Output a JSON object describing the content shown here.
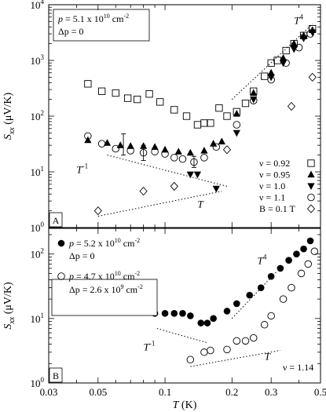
{
  "chart_data": [
    {
      "panel": "A",
      "type": "scatter",
      "log_x": true,
      "log_y": true,
      "xlim": [
        0.03,
        0.5
      ],
      "ylim": [
        1,
        10000
      ],
      "ylabel_main": "S",
      "ylabel_sub": "xx",
      "ylabel_units": " (μV/K)",
      "x_tick_values": [
        0.03,
        0.05,
        0.1,
        0.2,
        0.3,
        0.5
      ],
      "y_tick_values": [
        1,
        10,
        100,
        1000,
        10000
      ],
      "y_tick_labels": [
        {
          "base": "10",
          "exp": "0"
        },
        {
          "base": "10",
          "exp": "1"
        },
        {
          "base": "10",
          "exp": "2"
        },
        {
          "base": "10",
          "exp": "3"
        },
        {
          "base": "10",
          "exp": "4"
        }
      ],
      "info_box": {
        "line1_var": "p",
        "line1_text": " = 5.1 x 10",
        "line1_exp": "10",
        "line1_unit": " cm",
        "line1_unit_exp": "-2",
        "line2": "Δp = 0"
      },
      "panel_label": "A",
      "guide_lines": [
        {
          "label": "T",
          "label_exp": "4",
          "from": [
            0.2,
            200
          ],
          "to": [
            0.46,
            4500
          ],
          "label_at": [
            0.38,
            4500
          ]
        },
        {
          "label": "T",
          "label_exp": "-1",
          "from": [
            0.055,
            20
          ],
          "to": [
            0.19,
            5.5
          ],
          "label_at": [
            0.04,
            9.5
          ]
        },
        {
          "label": "T",
          "label_exp": "",
          "from": [
            0.05,
            1.6
          ],
          "to": [
            0.18,
            4.5
          ],
          "label_at": [
            0.14,
            2.3
          ]
        }
      ],
      "series": [
        {
          "name": "ν = 0.92",
          "marker": "square-open",
          "x": [
            0.045,
            0.052,
            0.06,
            0.068,
            0.075,
            0.085,
            0.095,
            0.11,
            0.125,
            0.14,
            0.15,
            0.16,
            0.175,
            0.19,
            0.21,
            0.23,
            0.25,
            0.28,
            0.3,
            0.32,
            0.35,
            0.38,
            0.42,
            0.46
          ],
          "y": [
            380,
            280,
            260,
            210,
            200,
            250,
            180,
            130,
            100,
            70,
            75,
            75,
            140,
            100,
            120,
            170,
            280,
            520,
            900,
            1000,
            1500,
            2000,
            2800,
            3700
          ]
        },
        {
          "name": "ν = 0.95",
          "marker": "triangle-up",
          "x": [
            0.045,
            0.055,
            0.063,
            0.07,
            0.08,
            0.09,
            0.1,
            0.115,
            0.13,
            0.15,
            0.165,
            0.18,
            0.21,
            0.25,
            0.3,
            0.34,
            0.38,
            0.42,
            0.46
          ],
          "y": [
            37,
            33,
            30,
            29,
            29,
            28,
            25,
            23,
            22,
            24,
            32,
            35,
            110,
            260,
            600,
            1100,
            2000,
            2800,
            3500
          ]
        },
        {
          "name": "ν = 1.0",
          "marker": "triangle-down",
          "x": [
            0.13,
            0.14,
            0.17,
            0.21,
            0.25,
            0.3,
            0.34,
            0.38,
            0.42,
            0.46
          ],
          "y": [
            9,
            9,
            5,
            50,
            200,
            500,
            900,
            1600,
            2500,
            3200
          ]
        },
        {
          "name": "ν = 1.1",
          "marker": "circle-open",
          "x": [
            0.045,
            0.052,
            0.06,
            0.07,
            0.08,
            0.09,
            0.1,
            0.11,
            0.12,
            0.135,
            0.15,
            0.17,
            0.21,
            0.25,
            0.3,
            0.35,
            0.4,
            0.45
          ],
          "y": [
            44,
            32,
            26,
            24,
            22,
            23,
            21,
            18,
            17,
            15,
            18,
            28,
            70,
            190,
            450,
            900,
            1700,
            3000
          ]
        },
        {
          "name": "B = 0.1 T",
          "marker": "diamond-open",
          "x": [
            0.05,
            0.08,
            0.11,
            0.19,
            0.37,
            0.46
          ],
          "y": [
            2,
            4.5,
            5.5,
            25,
            150,
            500
          ]
        }
      ],
      "error_bars": [
        {
          "x": 0.065,
          "y": 32,
          "lo": 20,
          "hi": 48
        },
        {
          "x": 0.08,
          "y": 22,
          "lo": 16,
          "hi": 30
        },
        {
          "x": 0.135,
          "y": 15,
          "lo": 12,
          "hi": 19
        }
      ],
      "legend_placement": "bottom-right"
    },
    {
      "panel": "B",
      "type": "scatter",
      "log_x": true,
      "log_y": true,
      "xlim": [
        0.03,
        0.5
      ],
      "ylim": [
        1,
        250
      ],
      "xlabel_main": "T",
      "xlabel_units": " (K)",
      "ylabel_main": "S",
      "ylabel_sub": "xx",
      "ylabel_units": " (μV/K)",
      "x_tick_values": [
        0.03,
        0.05,
        0.1,
        0.2,
        0.3,
        0.5
      ],
      "x_tick_labels": [
        "0.03",
        "0.05",
        "0.1",
        "0.2",
        "0.3",
        "0.5"
      ],
      "y_tick_values": [
        1,
        10,
        100
      ],
      "y_tick_labels": [
        {
          "base": "10",
          "exp": "0"
        },
        {
          "base": "10",
          "exp": "1"
        },
        {
          "base": "10",
          "exp": "2"
        }
      ],
      "panel_label": "B",
      "nu_label": "ν = 1.14",
      "guide_lines": [
        {
          "label": "T",
          "label_exp": "4",
          "from": [
            0.2,
            10
          ],
          "to": [
            0.32,
            55
          ],
          "label_at": [
            0.26,
            70
          ]
        },
        {
          "label": "T",
          "label_exp": "-1",
          "from": [
            0.092,
            7
          ],
          "to": [
            0.155,
            4.2
          ],
          "label_at": [
            0.08,
            3.2
          ]
        },
        {
          "label": "T",
          "label_exp": "",
          "from": [
            0.13,
            1.8
          ],
          "to": [
            0.33,
            3.2
          ],
          "label_at": [
            0.28,
            2.3
          ]
        }
      ],
      "series": [
        {
          "name": "p = 5.2 x 10^10 cm^-2, Δp = 0",
          "marker": "circle-filled",
          "legend_lines": [
            {
              "var": "p",
              "text": " = 5.2 x 10",
              "exp": "10",
              "unit": " cm",
              "unit_exp": "-2"
            },
            {
              "var": "",
              "text": "Δp = 0",
              "exp": "",
              "unit": "",
              "unit_exp": ""
            }
          ],
          "x": [
            0.09,
            0.1,
            0.11,
            0.12,
            0.13,
            0.145,
            0.155,
            0.165,
            0.19,
            0.21,
            0.24,
            0.27,
            0.3,
            0.33,
            0.36,
            0.39,
            0.42,
            0.45
          ],
          "y": [
            12,
            12,
            12,
            12,
            11,
            8.5,
            8.5,
            10,
            13,
            17,
            23,
            30,
            45,
            60,
            80,
            100,
            120,
            160
          ]
        },
        {
          "name": "p = 4.7 x 10^10 cm^-2, Δp = 2.6 x 10^9 cm^-2",
          "marker": "circle-open",
          "legend_lines": [
            {
              "var": "p",
              "text": " = 4.7 x 10",
              "exp": "10",
              "unit": " cm",
              "unit_exp": "-2"
            },
            {
              "var": "",
              "text": "Δp = 2.6 x 10",
              "exp": "9",
              "unit": " cm",
              "unit_exp": "-2"
            }
          ],
          "x": [
            0.13,
            0.15,
            0.16,
            0.19,
            0.21,
            0.23,
            0.25,
            0.28,
            0.3,
            0.34,
            0.37,
            0.41,
            0.44,
            0.47
          ],
          "y": [
            2.3,
            3,
            3.2,
            3.3,
            4.5,
            4.5,
            5,
            8,
            11,
            20,
            30,
            50,
            70,
            110
          ]
        }
      ],
      "legend_placement": "top-left"
    }
  ]
}
